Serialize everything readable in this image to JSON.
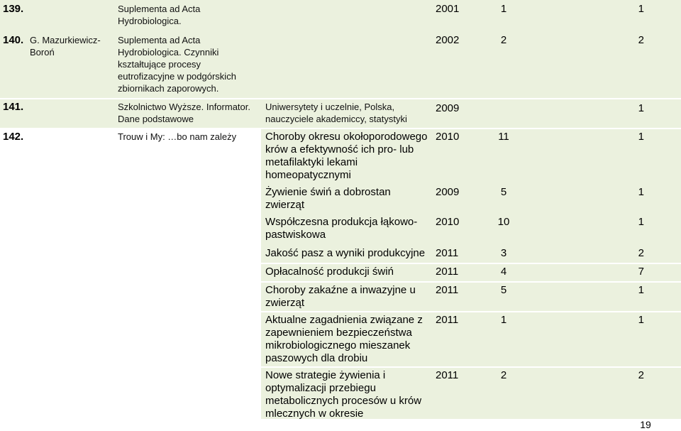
{
  "rows": [
    {
      "no": "139.",
      "author": "",
      "title": "Suplementa ad Acta Hydrobiologica.",
      "topic": "",
      "year": "2001",
      "n1": "1",
      "n2": "1"
    },
    {
      "no": "140.",
      "author": "G. Mazurkiewicz-Boroń",
      "title": "Suplementa ad Acta Hydrobiologica. Czynniki kształtujące procesy eutrofizacyjne w podgórskich zbiornikach zaporowych.",
      "topic": "",
      "year": "2002",
      "n1": "2",
      "n2": "2"
    },
    {
      "no": "141.",
      "author": "",
      "title": "Szkolnictwo Wyższe. Informator. Dane podstawowe",
      "topic": "Uniwersytety i uczelnie, Polska, nauczyciele akademiccy, statystyki",
      "year": "2009",
      "n1": "",
      "n2": "1"
    },
    {
      "no": "142.",
      "author": "",
      "title": "Trouw i My: …bo nam zależy",
      "topic": "Choroby okresu okołoporodowego krów a efektywność ich pro- lub metafilaktyki lekami homeopatycznymi",
      "year": "2010",
      "n1": "11",
      "n2": "1"
    },
    {
      "no": "",
      "author": "",
      "title": "",
      "topic": "Żywienie świń a dobrostan zwierząt",
      "year": "2009",
      "n1": "5",
      "n2": "1"
    },
    {
      "no": "",
      "author": "",
      "title": "",
      "topic": "Współczesna produkcja łąkowo-pastwiskowa",
      "year": "2010",
      "n1": "10",
      "n2": "1"
    },
    {
      "no": "",
      "author": "",
      "title": "",
      "topic": "Jakość pasz a wyniki produkcyjne",
      "year": "2011",
      "n1": "3",
      "n2": "2"
    },
    {
      "no": "",
      "author": "",
      "title": "",
      "topic": "Opłacalność produkcji świń",
      "year": "2011",
      "n1": "4",
      "n2": "7"
    },
    {
      "no": "",
      "author": "",
      "title": "",
      "topic": "Choroby zakaźne a inwazyjne u zwierząt",
      "year": "2011",
      "n1": "5",
      "n2": "1"
    },
    {
      "no": "",
      "author": "",
      "title": "",
      "topic": "Aktualne zagadnienia związane z zapewnieniem bezpieczeństwa mikrobiologicznego mieszanek paszowych dla drobiu",
      "year": "2011",
      "n1": "1",
      "n2": "1"
    },
    {
      "no": "",
      "author": "",
      "title": "",
      "topic": "Nowe strategie żywienia i optymalizacji przebiegu metabolicznych procesów u krów mlecznych w okresie",
      "year": "2011",
      "n1": "2",
      "n2": "2"
    }
  ],
  "page_number": "19"
}
